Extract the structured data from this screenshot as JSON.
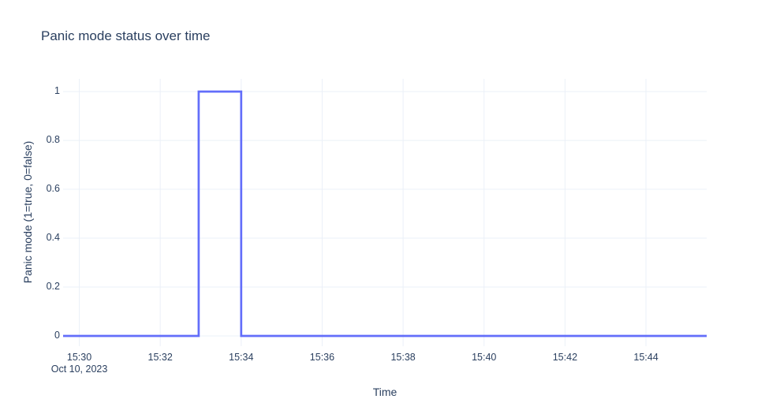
{
  "chart_data": {
    "type": "line",
    "subtype": "step-pulse",
    "title": "Panic mode status over time",
    "xlabel": "Time",
    "ylabel": "Panic mode (1=true, 0=false)",
    "x_date_label": "Oct 10, 2023",
    "x_ticks": [
      "15:30",
      "15:32",
      "15:34",
      "15:36",
      "15:38",
      "15:40",
      "15:42",
      "15:44"
    ],
    "y_ticks": [
      "0",
      "0.2",
      "0.4",
      "0.6",
      "0.8",
      "1"
    ],
    "x_range": [
      "15:29:36",
      "15:45:30"
    ],
    "y_range": [
      -0.042,
      1.052
    ],
    "grid": true,
    "legend": "none",
    "series": [
      {
        "name": "Panic mode",
        "color": "#636efa",
        "line_width": 2.7,
        "points": [
          [
            "15:29:36",
            0
          ],
          [
            "15:32:57",
            0
          ],
          [
            "15:32:57",
            1
          ],
          [
            "15:34:00",
            1
          ],
          [
            "15:34:00",
            0
          ],
          [
            "15:45:30",
            0
          ]
        ]
      }
    ],
    "pulse": {
      "value_low": 0,
      "value_high": 1,
      "rise_time": "15:32:57",
      "fall_time": "15:34:00"
    },
    "colors": {
      "text": "#2a3f5f",
      "line": "#636efa",
      "grid": "#ebf0f8",
      "background": "#ffffff"
    }
  }
}
